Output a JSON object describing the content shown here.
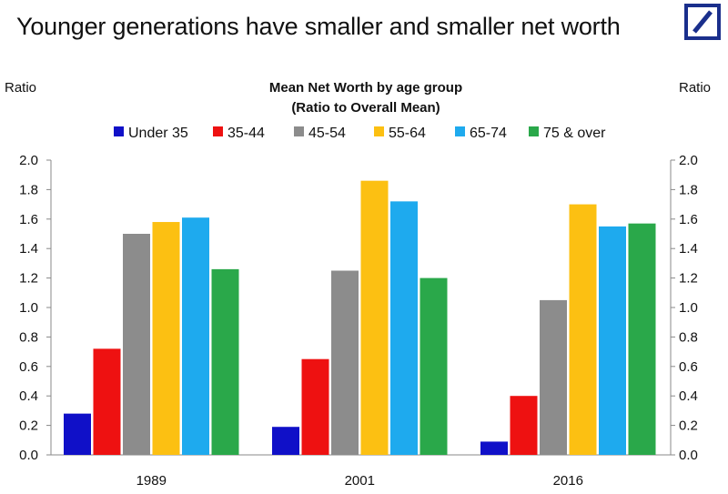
{
  "headline": "Younger generations have smaller and smaller net worth",
  "logo_icon": "deutsche-bank-slash-box-icon",
  "colors": {
    "logo": "#1a2f8c",
    "axis": "#888888"
  },
  "chart_data": {
    "type": "bar",
    "title": "Mean Net Worth by age group",
    "subtitle": "(Ratio to Overall Mean)",
    "ylabel_left": "Ratio",
    "ylabel_right": "Ratio",
    "ylim": [
      0,
      2.0
    ],
    "yticks": [
      "0.0",
      "0.2",
      "0.4",
      "0.6",
      "0.8",
      "1.0",
      "1.2",
      "1.4",
      "1.6",
      "1.8",
      "2.0"
    ],
    "legend_position": "top",
    "categories": [
      "1989",
      "2001",
      "2016"
    ],
    "series": [
      {
        "name": "Under 35",
        "color": "#1010c8",
        "values": [
          0.28,
          0.19,
          0.09
        ]
      },
      {
        "name": "35-44",
        "color": "#ee1111",
        "values": [
          0.72,
          0.65,
          0.4
        ]
      },
      {
        "name": "45-54",
        "color": "#8c8c8c",
        "values": [
          1.5,
          1.25,
          1.05
        ]
      },
      {
        "name": "55-64",
        "color": "#fcc012",
        "values": [
          1.58,
          1.86,
          1.7
        ]
      },
      {
        "name": "65-74",
        "color": "#1eaaee",
        "values": [
          1.61,
          1.72,
          1.55
        ]
      },
      {
        "name": "75 & over",
        "color": "#2aa84a",
        "values": [
          1.26,
          1.2,
          1.57
        ]
      }
    ]
  }
}
